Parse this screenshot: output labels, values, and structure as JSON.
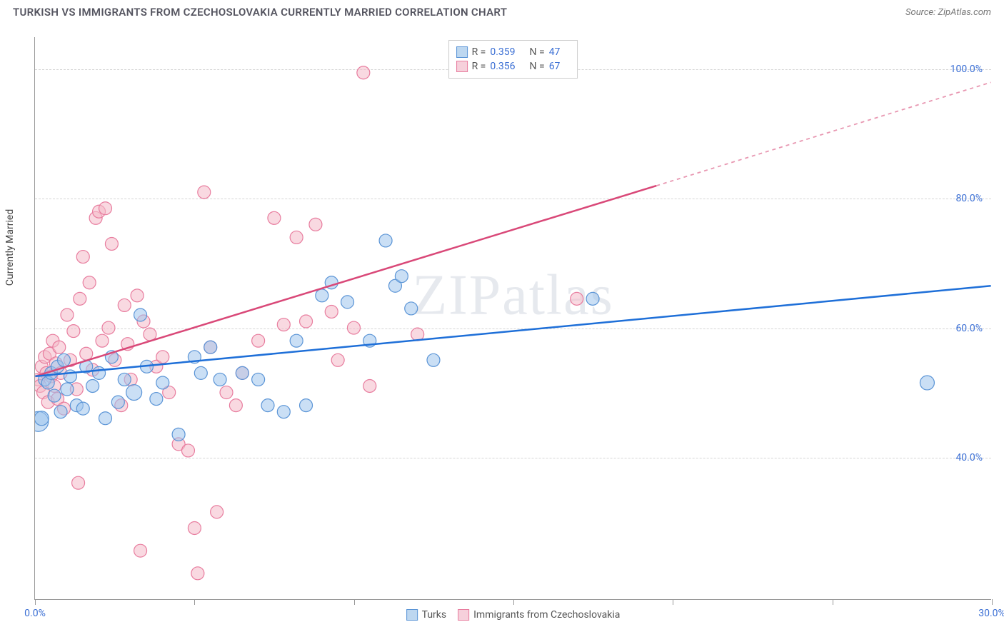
{
  "header": {
    "title": "TURKISH VS IMMIGRANTS FROM CZECHOSLOVAKIA CURRENTLY MARRIED CORRELATION CHART",
    "source": "Source: ZipAtlas.com"
  },
  "ylabel": "Currently Married",
  "watermark": "ZIPatlas",
  "chart": {
    "type": "scatter",
    "xlim": [
      0,
      30
    ],
    "ylim": [
      18,
      105
    ],
    "xticks": [
      0,
      10,
      20,
      30
    ],
    "xtick_labels": [
      "0.0%",
      "",
      "",
      "30.0%"
    ],
    "minor_xticks": [
      5,
      15,
      25
    ],
    "yticks": [
      40,
      60,
      80,
      100
    ],
    "ytick_labels": [
      "40.0%",
      "60.0%",
      "80.0%",
      "100.0%"
    ],
    "grid_color": "#d5d5d5",
    "axis_color": "#999999",
    "background": "#ffffff",
    "tick_label_color": "#3b6fd4",
    "tick_label_fontsize": 14
  },
  "series": {
    "turks": {
      "label": "Turks",
      "color_fill": "#9fc4ec",
      "color_stroke": "#5a94d6",
      "fill_opacity": 0.55,
      "marker_radius": 9,
      "R": "0.359",
      "N": "47",
      "trend": {
        "x0": 0,
        "y0": 52.5,
        "x1": 30,
        "y1": 66.5,
        "color": "#1e6fd8",
        "width": 2.5,
        "dash": "none"
      },
      "points": [
        [
          0.1,
          45.5,
          14
        ],
        [
          0.2,
          46.0,
          10
        ],
        [
          0.3,
          52.0,
          9
        ],
        [
          0.4,
          51.5,
          9
        ],
        [
          0.5,
          53.0,
          9
        ],
        [
          0.6,
          49.5,
          9
        ],
        [
          0.7,
          54.0,
          9
        ],
        [
          0.8,
          47.0,
          9
        ],
        [
          0.9,
          55.0,
          9
        ],
        [
          1.0,
          50.5,
          9
        ],
        [
          1.1,
          52.5,
          9
        ],
        [
          1.3,
          48.0,
          9
        ],
        [
          1.5,
          47.5,
          9
        ],
        [
          1.6,
          54.0,
          9
        ],
        [
          1.8,
          51.0,
          9
        ],
        [
          2.0,
          53.0,
          9
        ],
        [
          2.2,
          46.0,
          9
        ],
        [
          2.4,
          55.5,
          9
        ],
        [
          2.6,
          48.5,
          9
        ],
        [
          2.8,
          52.0,
          9
        ],
        [
          3.1,
          50.0,
          11
        ],
        [
          3.3,
          62.0,
          9
        ],
        [
          3.5,
          54.0,
          9
        ],
        [
          3.8,
          49.0,
          9
        ],
        [
          4.0,
          51.5,
          9
        ],
        [
          4.5,
          43.5,
          9
        ],
        [
          5.0,
          55.5,
          9
        ],
        [
          5.2,
          53.0,
          9
        ],
        [
          5.5,
          57.0,
          9
        ],
        [
          5.8,
          52.0,
          9
        ],
        [
          6.5,
          53.0,
          9
        ],
        [
          7.0,
          52.0,
          9
        ],
        [
          7.3,
          48.0,
          9
        ],
        [
          7.8,
          47.0,
          9
        ],
        [
          8.2,
          58.0,
          9
        ],
        [
          8.5,
          48.0,
          9
        ],
        [
          9.0,
          65.0,
          9
        ],
        [
          9.3,
          67.0,
          9
        ],
        [
          9.8,
          64.0,
          9
        ],
        [
          10.5,
          58.0,
          9
        ],
        [
          11.0,
          73.5,
          9
        ],
        [
          11.3,
          66.5,
          9
        ],
        [
          11.5,
          68.0,
          9
        ],
        [
          11.8,
          63.0,
          9
        ],
        [
          12.5,
          55.0,
          9
        ],
        [
          17.5,
          64.5,
          9
        ],
        [
          28.0,
          51.5,
          10
        ]
      ]
    },
    "czech": {
      "label": "Immigrants from Czechoslovakia",
      "color_fill": "#f4b9c9",
      "color_stroke": "#e87c9e",
      "fill_opacity": 0.55,
      "marker_radius": 9,
      "R": "0.356",
      "N": "67",
      "trend_solid": {
        "x0": 0,
        "y0": 52.5,
        "x1": 19.5,
        "y1": 82.0,
        "color": "#d94878",
        "width": 2.5
      },
      "trend_dash": {
        "x0": 19.5,
        "y0": 82.0,
        "x1": 30,
        "y1": 98.0,
        "color": "#e897b1",
        "width": 1.8,
        "dash": "5,5"
      },
      "points": [
        [
          0.1,
          52.0,
          9
        ],
        [
          0.15,
          51.0,
          9
        ],
        [
          0.2,
          54.0,
          9
        ],
        [
          0.25,
          50.0,
          9
        ],
        [
          0.3,
          55.5,
          9
        ],
        [
          0.35,
          53.0,
          9
        ],
        [
          0.4,
          48.5,
          9
        ],
        [
          0.45,
          56.0,
          9
        ],
        [
          0.5,
          52.5,
          9
        ],
        [
          0.55,
          58.0,
          9
        ],
        [
          0.6,
          51.0,
          9
        ],
        [
          0.65,
          54.5,
          9
        ],
        [
          0.7,
          49.0,
          9
        ],
        [
          0.75,
          57.0,
          9
        ],
        [
          0.8,
          53.0,
          9
        ],
        [
          0.9,
          47.5,
          9
        ],
        [
          1.0,
          62.0,
          9
        ],
        [
          1.1,
          55.0,
          9
        ],
        [
          1.2,
          59.5,
          9
        ],
        [
          1.3,
          50.5,
          9
        ],
        [
          1.35,
          36.0,
          9
        ],
        [
          1.4,
          64.5,
          9
        ],
        [
          1.5,
          71.0,
          9
        ],
        [
          1.6,
          56.0,
          9
        ],
        [
          1.7,
          67.0,
          9
        ],
        [
          1.8,
          53.5,
          9
        ],
        [
          1.9,
          77.0,
          9
        ],
        [
          2.0,
          78.0,
          9
        ],
        [
          2.1,
          58.0,
          9
        ],
        [
          2.2,
          78.5,
          9
        ],
        [
          2.3,
          60.0,
          9
        ],
        [
          2.4,
          73.0,
          9
        ],
        [
          2.5,
          55.0,
          9
        ],
        [
          2.7,
          48.0,
          9
        ],
        [
          2.8,
          63.5,
          9
        ],
        [
          2.9,
          57.5,
          9
        ],
        [
          3.0,
          52.0,
          9
        ],
        [
          3.2,
          65.0,
          9
        ],
        [
          3.3,
          25.5,
          9
        ],
        [
          3.4,
          61.0,
          9
        ],
        [
          3.6,
          59.0,
          9
        ],
        [
          3.8,
          54.0,
          9
        ],
        [
          4.0,
          55.5,
          9
        ],
        [
          4.2,
          50.0,
          9
        ],
        [
          4.5,
          42.0,
          9
        ],
        [
          4.8,
          41.0,
          9
        ],
        [
          5.0,
          29.0,
          9
        ],
        [
          5.1,
          22.0,
          9
        ],
        [
          5.3,
          81.0,
          9
        ],
        [
          5.5,
          57.0,
          9
        ],
        [
          5.7,
          31.5,
          9
        ],
        [
          6.0,
          50.0,
          9
        ],
        [
          6.3,
          48.0,
          9
        ],
        [
          6.5,
          53.0,
          9
        ],
        [
          7.0,
          58.0,
          9
        ],
        [
          7.5,
          77.0,
          9
        ],
        [
          7.8,
          60.5,
          9
        ],
        [
          8.2,
          74.0,
          9
        ],
        [
          8.5,
          61.0,
          9
        ],
        [
          8.8,
          76.0,
          9
        ],
        [
          9.3,
          62.5,
          9
        ],
        [
          9.5,
          55.0,
          9
        ],
        [
          10.0,
          60.0,
          9
        ],
        [
          10.3,
          99.5,
          9
        ],
        [
          10.5,
          51.0,
          9
        ],
        [
          12.0,
          59.0,
          9
        ],
        [
          17.0,
          64.5,
          9
        ]
      ]
    }
  },
  "legend_top": {
    "r_label": "R =",
    "n_label": "N ="
  },
  "legend_bottom": {
    "item1": "Turks",
    "item2": "Immigrants from Czechoslovakia"
  }
}
